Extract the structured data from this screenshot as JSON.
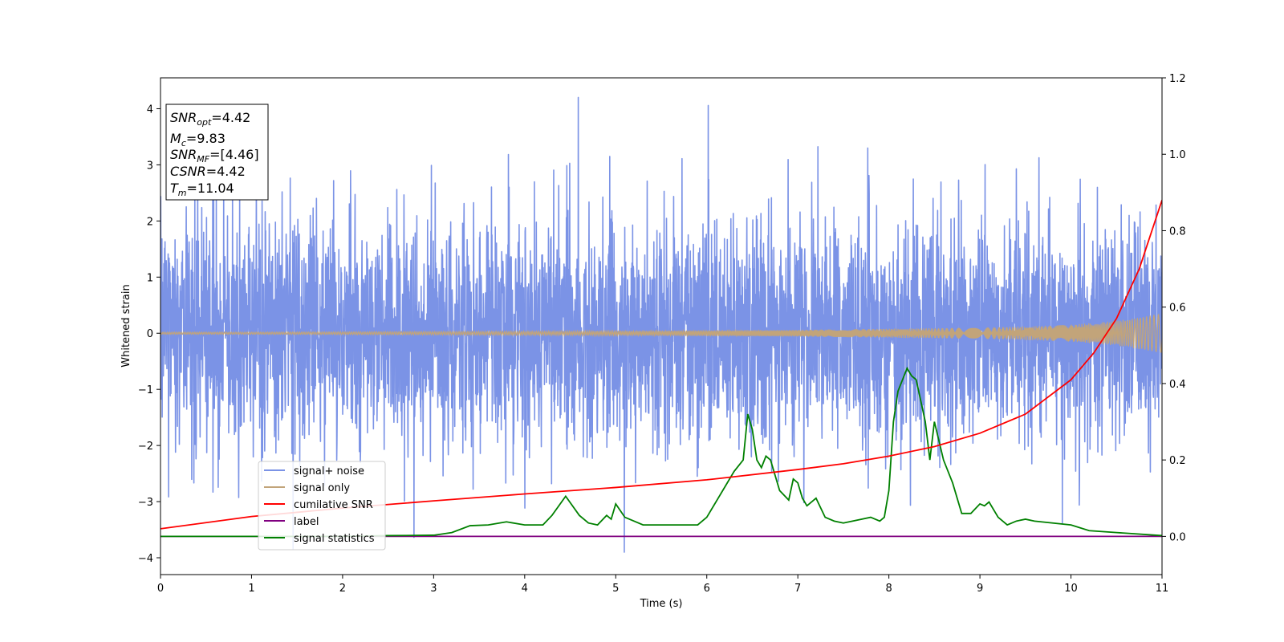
{
  "chart_data": {
    "type": "line",
    "xlabel": "Time (s)",
    "ylabel": "Whitened strain",
    "xlim": [
      0,
      11
    ],
    "ylim_left": [
      -4.3,
      4.55
    ],
    "ylim_right": [
      -0.1,
      1.2
    ],
    "x_ticks": [
      "0",
      "1",
      "2",
      "3",
      "4",
      "5",
      "6",
      "7",
      "8",
      "9",
      "10",
      "11"
    ],
    "y_left_ticks": [
      "4",
      "3",
      "2",
      "1",
      "0",
      "−1",
      "−2",
      "−3",
      "−4"
    ],
    "y_left_tick_values": [
      4,
      3,
      2,
      1,
      0,
      -1,
      -2,
      -3,
      -4
    ],
    "y_right_ticks": [
      "1.2",
      "1.0",
      "0.8",
      "0.6",
      "0.4",
      "0.2",
      "0.0"
    ],
    "y_right_tick_values": [
      1.2,
      1.0,
      0.8,
      0.6,
      0.4,
      0.2,
      0.0
    ],
    "info_box": {
      "line1_main": "SNR",
      "line1_sub": "opt",
      "line1_value": "=4.42",
      "line2_main": "M",
      "line2_sub": "c",
      "line2_value": "=9.83",
      "line3_main": "SNR",
      "line3_sub": "MF",
      "line3_value": "=[4.46]",
      "line4_main": "CSNR",
      "line4_value": "=4.42",
      "line5_main": "T",
      "line5_sub": "m",
      "line5_value": "=11.04"
    },
    "legend": {
      "placement": "lower-left",
      "entries": [
        "signal+ noise",
        "signal only",
        "cumilative SNR",
        "label",
        "signal statistics"
      ]
    },
    "colors": {
      "noise": "#7b93e6",
      "signal": "#c2a47a",
      "cumulative_snr": "#ff0000",
      "label": "#800080",
      "statistics": "#008000"
    },
    "series": [
      {
        "name": "signal+ noise",
        "axis": "left",
        "description_range": [
          -3.9,
          4.2
        ],
        "noise_std": 1.0
      },
      {
        "name": "signal only",
        "axis": "left",
        "envelope_x": [
          0,
          1,
          2,
          3,
          4,
          5,
          6,
          7,
          8,
          9,
          9.5,
          10,
          10.5,
          11
        ],
        "envelope_y": [
          0.02,
          0.02,
          0.025,
          0.03,
          0.035,
          0.04,
          0.05,
          0.06,
          0.08,
          0.1,
          0.12,
          0.15,
          0.22,
          0.35
        ]
      },
      {
        "name": "cumilative SNR",
        "axis": "right",
        "x": [
          0,
          1,
          2,
          3,
          4,
          5,
          6,
          7,
          7.5,
          8,
          8.5,
          9,
          9.5,
          10,
          10.25,
          10.5,
          10.75,
          11
        ],
        "y": [
          0.02,
          0.052,
          0.074,
          0.093,
          0.111,
          0.128,
          0.148,
          0.175,
          0.19,
          0.21,
          0.235,
          0.27,
          0.32,
          0.41,
          0.48,
          0.57,
          0.7,
          0.88
        ]
      },
      {
        "name": "label",
        "axis": "right",
        "x": [
          0,
          11
        ],
        "y": [
          0.0,
          0.0
        ]
      },
      {
        "name": "signal statistics",
        "axis": "right",
        "x": [
          0,
          1,
          2,
          2.5,
          3,
          3.2,
          3.4,
          3.6,
          3.8,
          4.0,
          4.2,
          4.3,
          4.45,
          4.6,
          4.7,
          4.8,
          4.9,
          4.95,
          5.0,
          5.1,
          5.3,
          5.5,
          5.6,
          5.7,
          5.9,
          6.0,
          6.1,
          6.2,
          6.3,
          6.4,
          6.45,
          6.5,
          6.55,
          6.6,
          6.65,
          6.7,
          6.8,
          6.9,
          6.95,
          7.0,
          7.05,
          7.1,
          7.2,
          7.3,
          7.4,
          7.5,
          7.6,
          7.7,
          7.8,
          7.9,
          7.95,
          8.0,
          8.05,
          8.1,
          8.2,
          8.25,
          8.3,
          8.4,
          8.45,
          8.5,
          8.55,
          8.6,
          8.7,
          8.8,
          8.9,
          9.0,
          9.05,
          9.1,
          9.2,
          9.3,
          9.4,
          9.5,
          9.6,
          9.8,
          10.0,
          10.2,
          10.5,
          11.0
        ],
        "y": [
          0.0,
          0.0,
          0.0,
          0.002,
          0.003,
          0.01,
          0.028,
          0.03,
          0.038,
          0.03,
          0.03,
          0.055,
          0.105,
          0.055,
          0.035,
          0.03,
          0.055,
          0.045,
          0.085,
          0.05,
          0.03,
          0.03,
          0.03,
          0.03,
          0.03,
          0.05,
          0.09,
          0.13,
          0.17,
          0.2,
          0.32,
          0.28,
          0.2,
          0.18,
          0.21,
          0.2,
          0.12,
          0.095,
          0.15,
          0.14,
          0.1,
          0.08,
          0.1,
          0.05,
          0.04,
          0.035,
          0.04,
          0.045,
          0.05,
          0.04,
          0.05,
          0.12,
          0.3,
          0.38,
          0.44,
          0.42,
          0.41,
          0.3,
          0.2,
          0.3,
          0.25,
          0.2,
          0.14,
          0.06,
          0.06,
          0.085,
          0.08,
          0.09,
          0.05,
          0.03,
          0.04,
          0.045,
          0.04,
          0.035,
          0.03,
          0.015,
          0.01,
          0.002
        ]
      }
    ]
  }
}
